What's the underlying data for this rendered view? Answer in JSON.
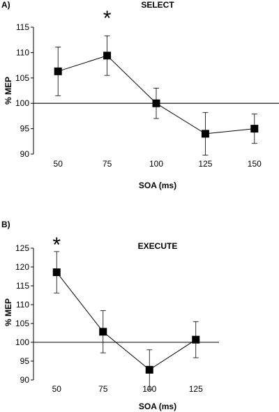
{
  "chart_data": [
    {
      "type": "line",
      "panel_label": "A)",
      "title": "SELECT",
      "xlabel": "SOA (ms)",
      "ylabel": "% MEP",
      "categories": [
        "50",
        "75",
        "100",
        "125",
        "150"
      ],
      "values": [
        106.3,
        109.4,
        100.0,
        94.0,
        95.0
      ],
      "error": [
        4.8,
        3.9,
        3.0,
        4.2,
        2.9
      ],
      "ylim": [
        90,
        115
      ],
      "yticks": [
        "90",
        "95",
        "100",
        "105",
        "110",
        "115"
      ],
      "reference_line": 100,
      "significance": [
        {
          "category": "75",
          "label": "*"
        }
      ],
      "grid": false,
      "legend": "none"
    },
    {
      "type": "line",
      "panel_label": "B)",
      "title": "EXECUTE",
      "xlabel": "SOA (ms)",
      "ylabel": "% MEP",
      "categories": [
        "50",
        "75",
        "100",
        "125"
      ],
      "values": [
        118.6,
        102.8,
        92.7,
        100.7
      ],
      "error": [
        5.5,
        5.6,
        5.3,
        4.8
      ],
      "ylim": [
        90,
        125
      ],
      "yticks": [
        "90",
        "95",
        "100",
        "105",
        "110",
        "115",
        "120",
        "125"
      ],
      "reference_line": 100,
      "significance": [
        {
          "category": "50",
          "label": "*"
        }
      ],
      "grid": false,
      "legend": "none"
    }
  ],
  "style": {
    "line_color": "#000000",
    "marker_color": "#000000",
    "background": "#ffffff"
  }
}
